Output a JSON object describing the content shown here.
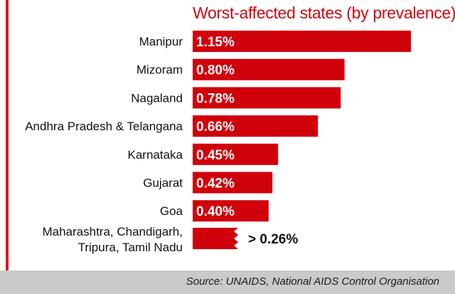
{
  "chart_data": {
    "type": "bar",
    "orientation": "horizontal",
    "title": "Worst-affected states (by prevalence)",
    "unit": "%",
    "categories": [
      "Manipur",
      "Mizoram",
      "Nagaland",
      "Andhra Pradesh & Telangana",
      "Karnataka",
      "Gujarat",
      "Goa",
      "Maharashtra, Chandigarh, Tripura, Tamil Nadu"
    ],
    "category_lines": [
      [
        "Manipur"
      ],
      [
        "Mizoram"
      ],
      [
        "Nagaland"
      ],
      [
        "Andhra Pradesh & Telangana"
      ],
      [
        "Karnataka"
      ],
      [
        "Gujarat"
      ],
      [
        "Goa"
      ],
      [
        "Maharashtra, Chandigarh,",
        "Tripura, Tamil Nadu"
      ]
    ],
    "values": [
      1.15,
      0.8,
      0.78,
      0.66,
      0.45,
      0.42,
      0.4,
      0.26
    ],
    "value_labels": [
      "1.15%",
      "0.80%",
      "0.78%",
      "0.66%",
      "0.45%",
      "0.42%",
      "0.40%",
      "> 0.26%"
    ],
    "bar_color": "#d0010b",
    "broken_last_bar": true
  },
  "footer": {
    "source": "Source: UNAIDS, National AIDS Control Organisation"
  },
  "colors": {
    "accent": "#d71920",
    "title": "#cc0a12",
    "footer_bg": "#cacaca"
  }
}
